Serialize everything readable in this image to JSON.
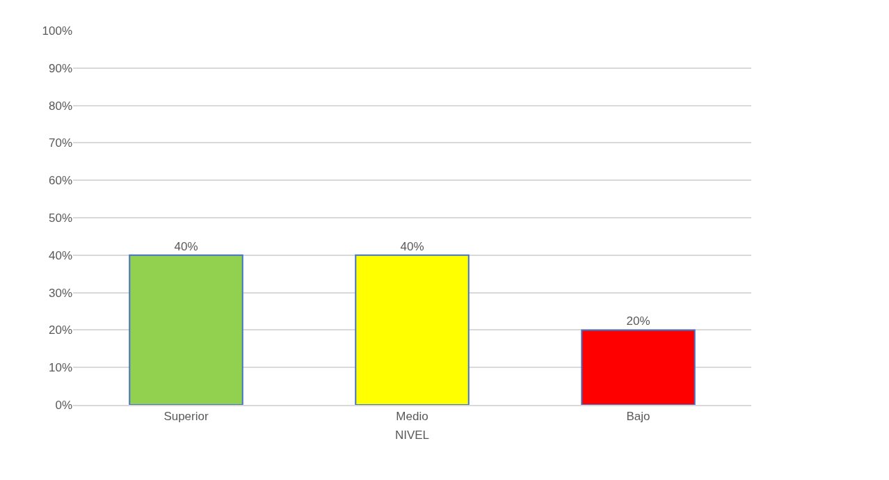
{
  "chart_data": {
    "type": "bar",
    "xlabel": "NIVEL",
    "categories": [
      "Superior",
      "Medio",
      "Bajo"
    ],
    "values": [
      40,
      40,
      20
    ],
    "colors": [
      "#92d050",
      "#ffff00",
      "#ff0000"
    ],
    "value_labels": [
      "40%",
      "40%",
      "20%"
    ],
    "ylim": [
      0,
      100
    ],
    "yticks": [
      {
        "value": 0,
        "label": "0%"
      },
      {
        "value": 10,
        "label": "10%"
      },
      {
        "value": 20,
        "label": "20%"
      },
      {
        "value": 30,
        "label": "30%"
      },
      {
        "value": 40,
        "label": "40%"
      },
      {
        "value": 50,
        "label": "50%"
      },
      {
        "value": 60,
        "label": "60%"
      },
      {
        "value": 70,
        "label": "70%"
      },
      {
        "value": 80,
        "label": "80%"
      },
      {
        "value": 90,
        "label": "90%"
      },
      {
        "value": 100,
        "label": "100%"
      }
    ],
    "grid": "y",
    "legend": false
  }
}
